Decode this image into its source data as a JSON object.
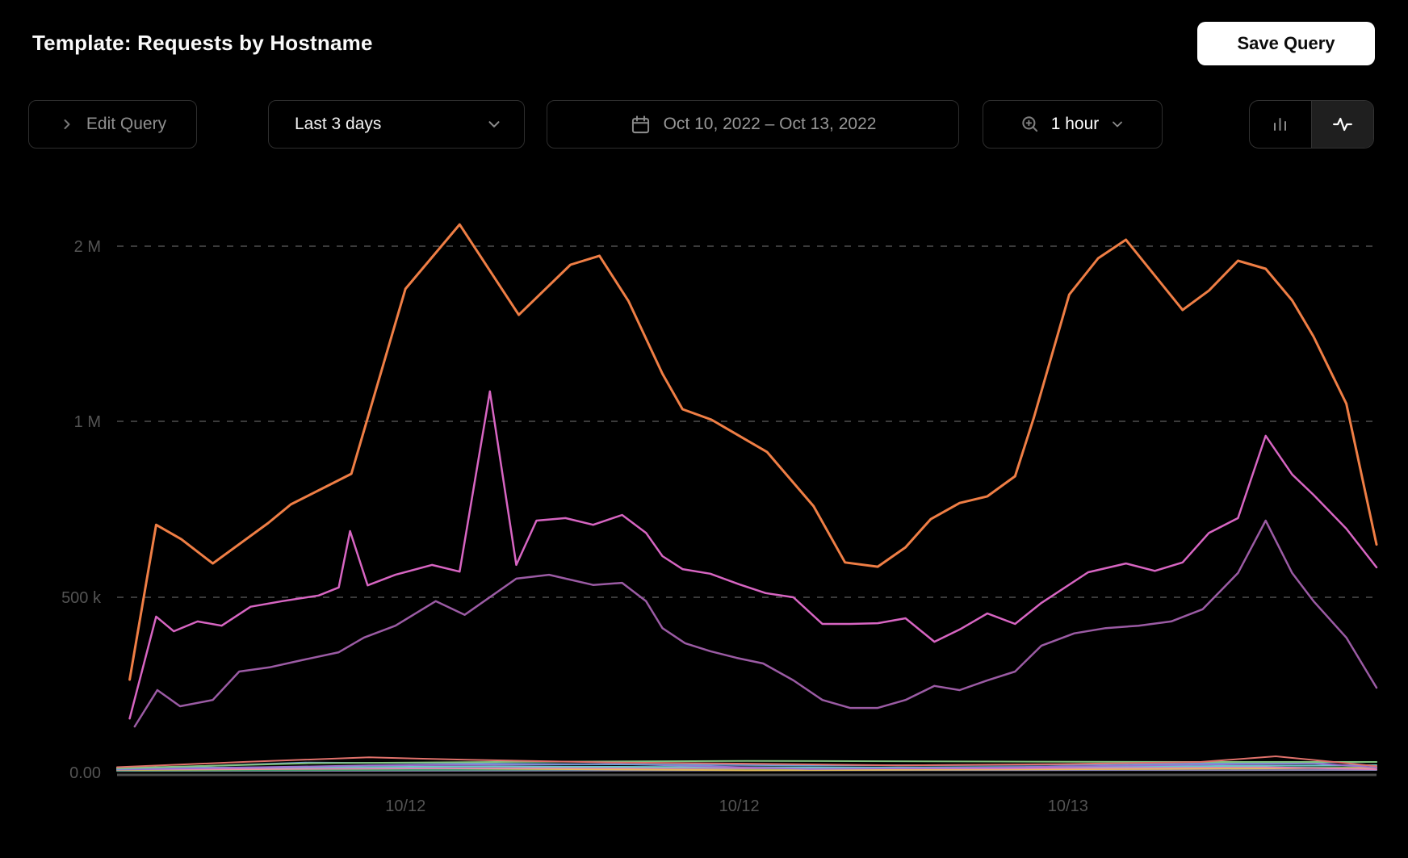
{
  "header": {
    "title": "Template: Requests by Hostname",
    "save_button_label": "Save Query"
  },
  "toolbar": {
    "edit_query_label": "Edit Query",
    "time_range_value": "Last 3 days",
    "date_range_value": "Oct 10, 2022 – Oct 13, 2022",
    "interval_value": "1 hour",
    "chart_type_selected": "line"
  },
  "icons": {
    "edit_query": "chevron-right",
    "time_range": "chevron-down",
    "date_range": "calendar",
    "interval_left": "magnifier-zoom-in",
    "interval_right": "chevron-down",
    "chart_type_left": "bar-chart",
    "chart_type_right": "activity-pulse"
  },
  "colors": {
    "background": "#000000",
    "title_text": "#fafafa",
    "button_border": "#2e2e2e",
    "dim_text": "#8f8f8f",
    "bright_text": "#f2f2f2",
    "gridline": "#3b3b3b",
    "axis_line": "#4f4f4f",
    "tick_text": "#545454",
    "series_orange": "#ef7e45",
    "series_magenta": "#d765c2",
    "series_purple": "#9b5ba4"
  },
  "chart_data": {
    "type": "line",
    "title": "",
    "xlabel": "",
    "ylabel": "",
    "grid": "horizontal dashed",
    "legend": "none",
    "y_scale": "non-linear: gridlines equally spaced at 0, 500k, 1M, 2M",
    "ylim": [
      0,
      2150000
    ],
    "y_ticks": [
      {
        "label": "2 M",
        "value": 2000000
      },
      {
        "label": "1 M",
        "value": 1000000
      },
      {
        "label": "500 k",
        "value": 500000
      },
      {
        "label": "0.00",
        "value": 0
      }
    ],
    "x_ticks": [
      {
        "label": "10/12",
        "f": 0.229
      },
      {
        "label": "10/12",
        "f": 0.494
      },
      {
        "label": "10/13",
        "f": 0.755
      }
    ],
    "series": [
      {
        "color": "#8a86b4",
        "width": 2,
        "points": [
          [
            0.0,
            4000
          ],
          [
            0.5,
            6000
          ],
          [
            1.0,
            7000
          ]
        ]
      },
      {
        "color": "#3f9e6a",
        "width": 2,
        "points": [
          [
            0.0,
            5000
          ],
          [
            0.4,
            9000
          ],
          [
            0.7,
            12000
          ],
          [
            1.0,
            15000
          ]
        ]
      },
      {
        "color": "#e4bd58",
        "width": 2,
        "points": [
          [
            0.0,
            7000
          ],
          [
            0.25,
            12000
          ],
          [
            0.5,
            6000
          ],
          [
            0.75,
            9000
          ],
          [
            1.0,
            13000
          ]
        ]
      },
      {
        "color": "#e07fb7",
        "width": 2,
        "points": [
          [
            0.0,
            9000
          ],
          [
            0.35,
            13000
          ],
          [
            0.7,
            11000
          ],
          [
            0.9,
            16000
          ],
          [
            1.0,
            9000
          ]
        ]
      },
      {
        "color": "#68c6c6",
        "width": 2,
        "points": [
          [
            0.0,
            13000
          ],
          [
            0.3,
            17000
          ],
          [
            0.6,
            14000
          ],
          [
            0.85,
            18000
          ],
          [
            1.0,
            21000
          ]
        ]
      },
      {
        "color": "#9d6fd0",
        "width": 2,
        "points": [
          [
            0.0,
            8000
          ],
          [
            0.2,
            20000
          ],
          [
            0.4,
            24000
          ],
          [
            0.55,
            10000
          ],
          [
            0.7,
            14000
          ],
          [
            0.85,
            22000
          ],
          [
            0.95,
            26000
          ],
          [
            1.0,
            14000
          ]
        ]
      },
      {
        "color": "#6f9bd4",
        "width": 2,
        "points": [
          [
            0.0,
            10000
          ],
          [
            0.15,
            28000
          ],
          [
            0.35,
            24000
          ],
          [
            0.55,
            20000
          ],
          [
            0.75,
            22000
          ],
          [
            0.9,
            27000
          ],
          [
            1.0,
            30000
          ]
        ]
      },
      {
        "color": "#82c57e",
        "width": 2,
        "points": [
          [
            0.0,
            12000
          ],
          [
            0.15,
            26000
          ],
          [
            0.3,
            30000
          ],
          [
            0.5,
            33000
          ],
          [
            0.7,
            31000
          ],
          [
            0.85,
            30000
          ],
          [
            1.0,
            30000
          ]
        ]
      },
      {
        "color": "#e0716b",
        "width": 2,
        "points": [
          [
            0.0,
            15000
          ],
          [
            0.1,
            30000
          ],
          [
            0.2,
            43000
          ],
          [
            0.28,
            36000
          ],
          [
            0.4,
            28000
          ],
          [
            0.5,
            25000
          ],
          [
            0.62,
            20000
          ],
          [
            0.75,
            24000
          ],
          [
            0.86,
            30000
          ],
          [
            0.92,
            46000
          ],
          [
            1.0,
            18000
          ]
        ]
      },
      {
        "color": "#9b5ba4",
        "width": 2.5,
        "points": [
          [
            0.014,
            131000
          ],
          [
            0.032,
            235000
          ],
          [
            0.05,
            189000
          ],
          [
            0.076,
            207000
          ],
          [
            0.097,
            288000
          ],
          [
            0.121,
            300000
          ],
          [
            0.146,
            320000
          ],
          [
            0.176,
            343000
          ],
          [
            0.196,
            385000
          ],
          [
            0.221,
            419000
          ],
          [
            0.253,
            489000
          ],
          [
            0.276,
            450000
          ],
          [
            0.317,
            553000
          ],
          [
            0.343,
            564000
          ],
          [
            0.378,
            535000
          ],
          [
            0.401,
            541000
          ],
          [
            0.42,
            489000
          ],
          [
            0.433,
            412000
          ],
          [
            0.451,
            369000
          ],
          [
            0.471,
            346000
          ],
          [
            0.492,
            327000
          ],
          [
            0.513,
            311000
          ],
          [
            0.537,
            263000
          ],
          [
            0.56,
            207000
          ],
          [
            0.582,
            184000
          ],
          [
            0.604,
            184000
          ],
          [
            0.626,
            207000
          ],
          [
            0.649,
            247000
          ],
          [
            0.669,
            235000
          ],
          [
            0.691,
            263000
          ],
          [
            0.713,
            288000
          ],
          [
            0.734,
            362000
          ],
          [
            0.76,
            397000
          ],
          [
            0.785,
            412000
          ],
          [
            0.811,
            419000
          ],
          [
            0.837,
            431000
          ],
          [
            0.862,
            466000
          ],
          [
            0.89,
            569000
          ],
          [
            0.912,
            718000
          ],
          [
            0.933,
            569000
          ],
          [
            0.95,
            489000
          ],
          [
            0.976,
            385000
          ],
          [
            1.0,
            242000
          ]
        ]
      },
      {
        "color": "#d765c2",
        "width": 2.5,
        "points": [
          [
            0.01,
            154000
          ],
          [
            0.031,
            445000
          ],
          [
            0.045,
            403000
          ],
          [
            0.064,
            431000
          ],
          [
            0.083,
            419000
          ],
          [
            0.106,
            473000
          ],
          [
            0.131,
            489000
          ],
          [
            0.16,
            505000
          ],
          [
            0.176,
            528000
          ],
          [
            0.185,
            688000
          ],
          [
            0.199,
            534000
          ],
          [
            0.221,
            564000
          ],
          [
            0.25,
            592000
          ],
          [
            0.272,
            573000
          ],
          [
            0.296,
            1171000
          ],
          [
            0.317,
            592000
          ],
          [
            0.333,
            718000
          ],
          [
            0.356,
            725000
          ],
          [
            0.378,
            706000
          ],
          [
            0.401,
            734000
          ],
          [
            0.42,
            683000
          ],
          [
            0.433,
            617000
          ],
          [
            0.449,
            580000
          ],
          [
            0.471,
            567000
          ],
          [
            0.494,
            537000
          ],
          [
            0.515,
            512000
          ],
          [
            0.537,
            500000
          ],
          [
            0.56,
            424000
          ],
          [
            0.582,
            424000
          ],
          [
            0.604,
            426000
          ],
          [
            0.626,
            440000
          ],
          [
            0.649,
            373000
          ],
          [
            0.67,
            410000
          ],
          [
            0.691,
            454000
          ],
          [
            0.713,
            424000
          ],
          [
            0.734,
            484000
          ],
          [
            0.771,
            571000
          ],
          [
            0.801,
            596000
          ],
          [
            0.824,
            575000
          ],
          [
            0.846,
            599000
          ],
          [
            0.867,
            683000
          ],
          [
            0.89,
            725000
          ],
          [
            0.912,
            959000
          ],
          [
            0.933,
            849000
          ],
          [
            0.95,
            791000
          ],
          [
            0.976,
            695000
          ],
          [
            1.0,
            585000
          ]
        ]
      },
      {
        "color": "#ef7e45",
        "width": 3,
        "points": [
          [
            0.01,
            265000
          ],
          [
            0.031,
            706000
          ],
          [
            0.051,
            665000
          ],
          [
            0.076,
            596000
          ],
          [
            0.12,
            711000
          ],
          [
            0.138,
            764000
          ],
          [
            0.186,
            851000
          ],
          [
            0.229,
            1756000
          ],
          [
            0.272,
            2124000
          ],
          [
            0.319,
            1608000
          ],
          [
            0.36,
            1894000
          ],
          [
            0.383,
            1945000
          ],
          [
            0.406,
            1687000
          ],
          [
            0.433,
            1272000
          ],
          [
            0.449,
            1069000
          ],
          [
            0.472,
            1009000
          ],
          [
            0.516,
            913000
          ],
          [
            0.553,
            759000
          ],
          [
            0.578,
            599000
          ],
          [
            0.604,
            587000
          ],
          [
            0.626,
            642000
          ],
          [
            0.646,
            722000
          ],
          [
            0.669,
            768000
          ],
          [
            0.691,
            787000
          ],
          [
            0.713,
            844000
          ],
          [
            0.728,
            1023000
          ],
          [
            0.756,
            1724000
          ],
          [
            0.779,
            1931000
          ],
          [
            0.801,
            2037000
          ],
          [
            0.846,
            1636000
          ],
          [
            0.867,
            1747000
          ],
          [
            0.89,
            1917000
          ],
          [
            0.912,
            1871000
          ],
          [
            0.933,
            1691000
          ],
          [
            0.95,
            1484000
          ],
          [
            0.976,
            1101000
          ],
          [
            1.0,
            650000
          ]
        ]
      }
    ]
  }
}
